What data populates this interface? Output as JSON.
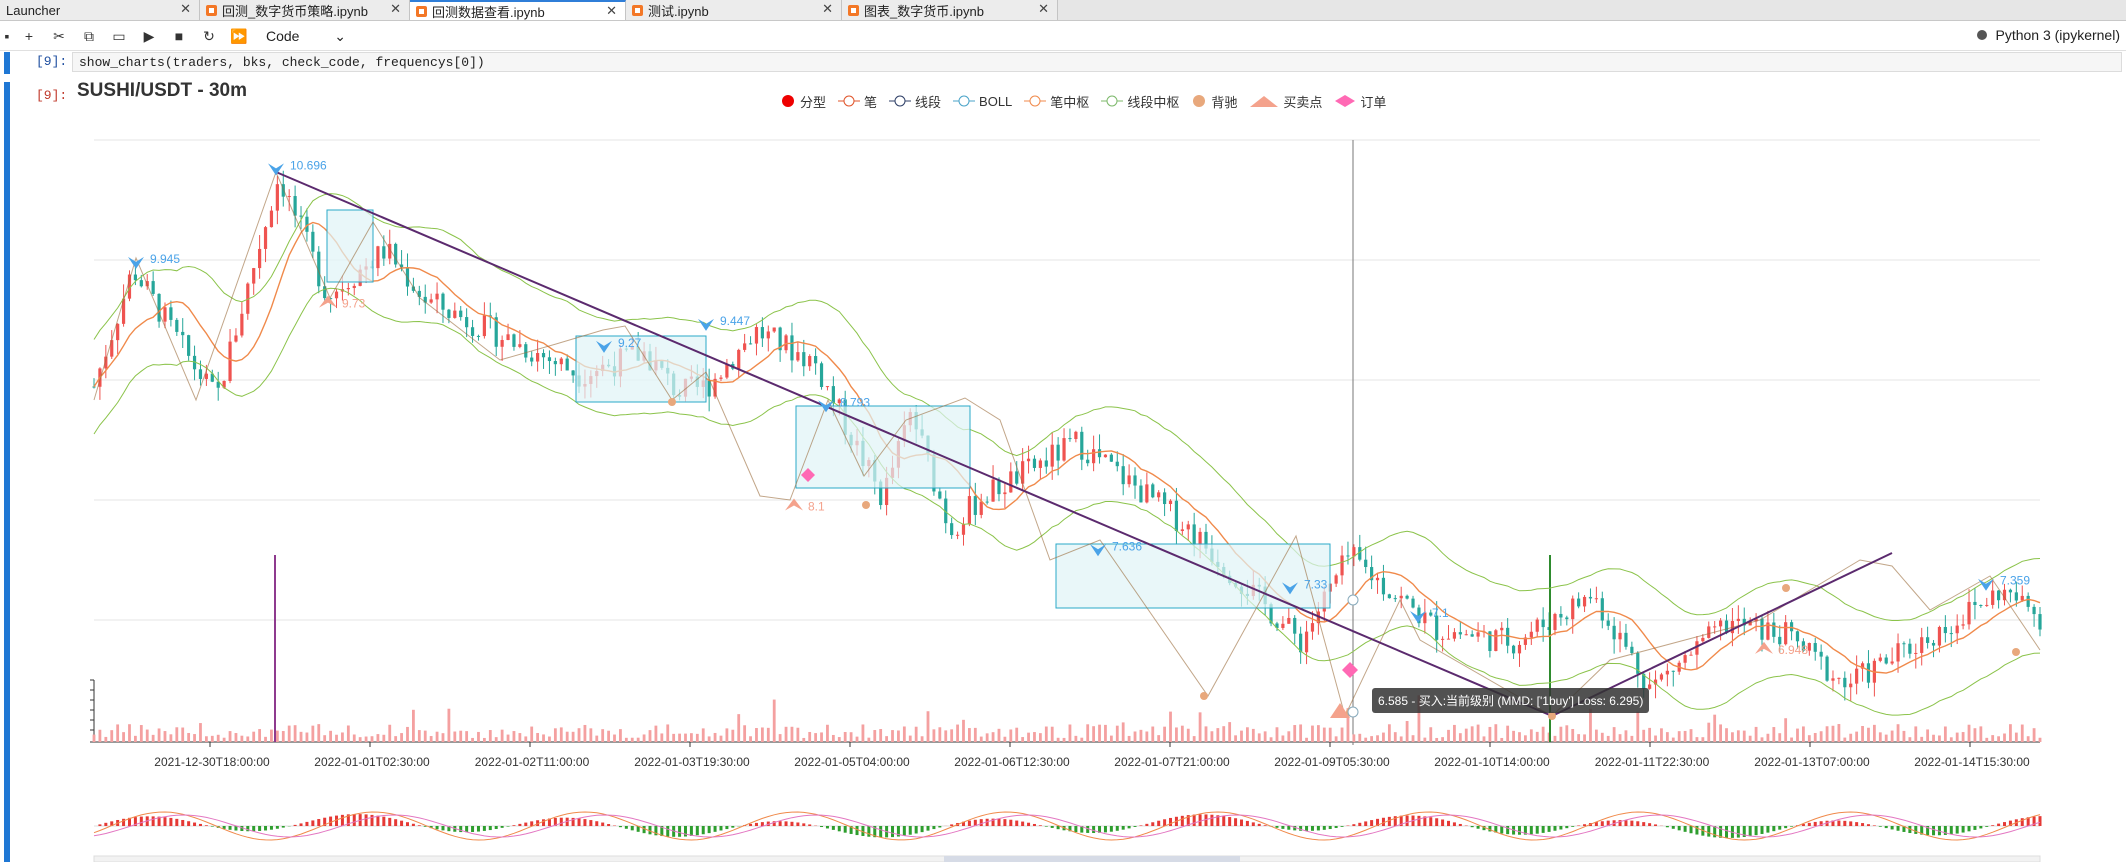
{
  "tabs": [
    {
      "label": "Launcher",
      "active": false
    },
    {
      "label": "回测_数字货币策略.ipynb",
      "active": false
    },
    {
      "label": "回测数据查看.ipynb",
      "active": true
    },
    {
      "label": "测试.ipynb",
      "active": false
    },
    {
      "label": "图表_数字货币.ipynb",
      "active": false
    }
  ],
  "toolbar": {
    "cell_type": "Code",
    "kernel": "Python 3 (ipykernel)"
  },
  "cell": {
    "in_prompt": "[9]:",
    "code": "show_charts(traders, bks, check_code, frequencys[0])",
    "out_prompt": "[9]:"
  },
  "chart_data": {
    "type": "line",
    "title": "SUSHI/USDT - 30m",
    "legend": [
      "分型",
      "笔",
      "线段",
      "BOLL",
      "笔中枢",
      "线段中枢",
      "背驰",
      "买卖点",
      "订单"
    ],
    "x_ticks": [
      "2021-12-30T18:00:00",
      "2022-01-01T02:30:00",
      "2022-01-02T11:00:00",
      "2022-01-03T19:30:00",
      "2022-01-05T04:00:00",
      "2022-01-06T12:30:00",
      "2022-01-07T21:00:00",
      "2022-01-09T05:30:00",
      "2022-01-10T14:00:00",
      "2022-01-11T22:30:00",
      "2022-01-13T07:00:00",
      "2022-01-14T15:30:00"
    ],
    "fractal_labels": [
      "9.945",
      "10.696",
      "9.73",
      "9.27",
      "9.447",
      "8.793",
      "8.1",
      "7.636",
      "7.33",
      "7.1",
      "7.359",
      "6.948"
    ],
    "price_fractals": [
      {
        "label": "9.945",
        "value": 9.945,
        "type": "top"
      },
      {
        "label": "10.696",
        "value": 10.696,
        "type": "top"
      },
      {
        "label": "9.73",
        "value": 9.73,
        "type": "bottom"
      },
      {
        "label": "9.27",
        "value": 9.27,
        "type": "top"
      },
      {
        "label": "9.447",
        "value": 9.447,
        "type": "top"
      },
      {
        "label": "8.793",
        "value": 8.793,
        "type": "top"
      },
      {
        "label": "8.1",
        "value": 8.1,
        "type": "bottom"
      },
      {
        "label": "7.636",
        "value": 7.636,
        "type": "top"
      },
      {
        "label": "7.33",
        "value": 7.33,
        "type": "top"
      },
      {
        "label": "7.1",
        "value": 7.1,
        "type": "top"
      },
      {
        "label": "7.359",
        "value": 7.359,
        "type": "top"
      },
      {
        "label": "6.948",
        "value": 6.948,
        "type": "bottom"
      }
    ],
    "tooltip": "6.585 - 买入:当前级别 (MMD: ['1buy'] Loss: 6.295)",
    "colors": {
      "up": "#ef5350",
      "down": "#26a69a",
      "bi": "#f08a4b",
      "xd": "#5b2a6e",
      "boll": "#8bc34a",
      "pivot_fill": "#dff3f6",
      "pivot_stroke": "#2aa8c8",
      "mark": "#4aa3e8",
      "buy": "#f4a28c",
      "order": "#ff69b4"
    }
  }
}
